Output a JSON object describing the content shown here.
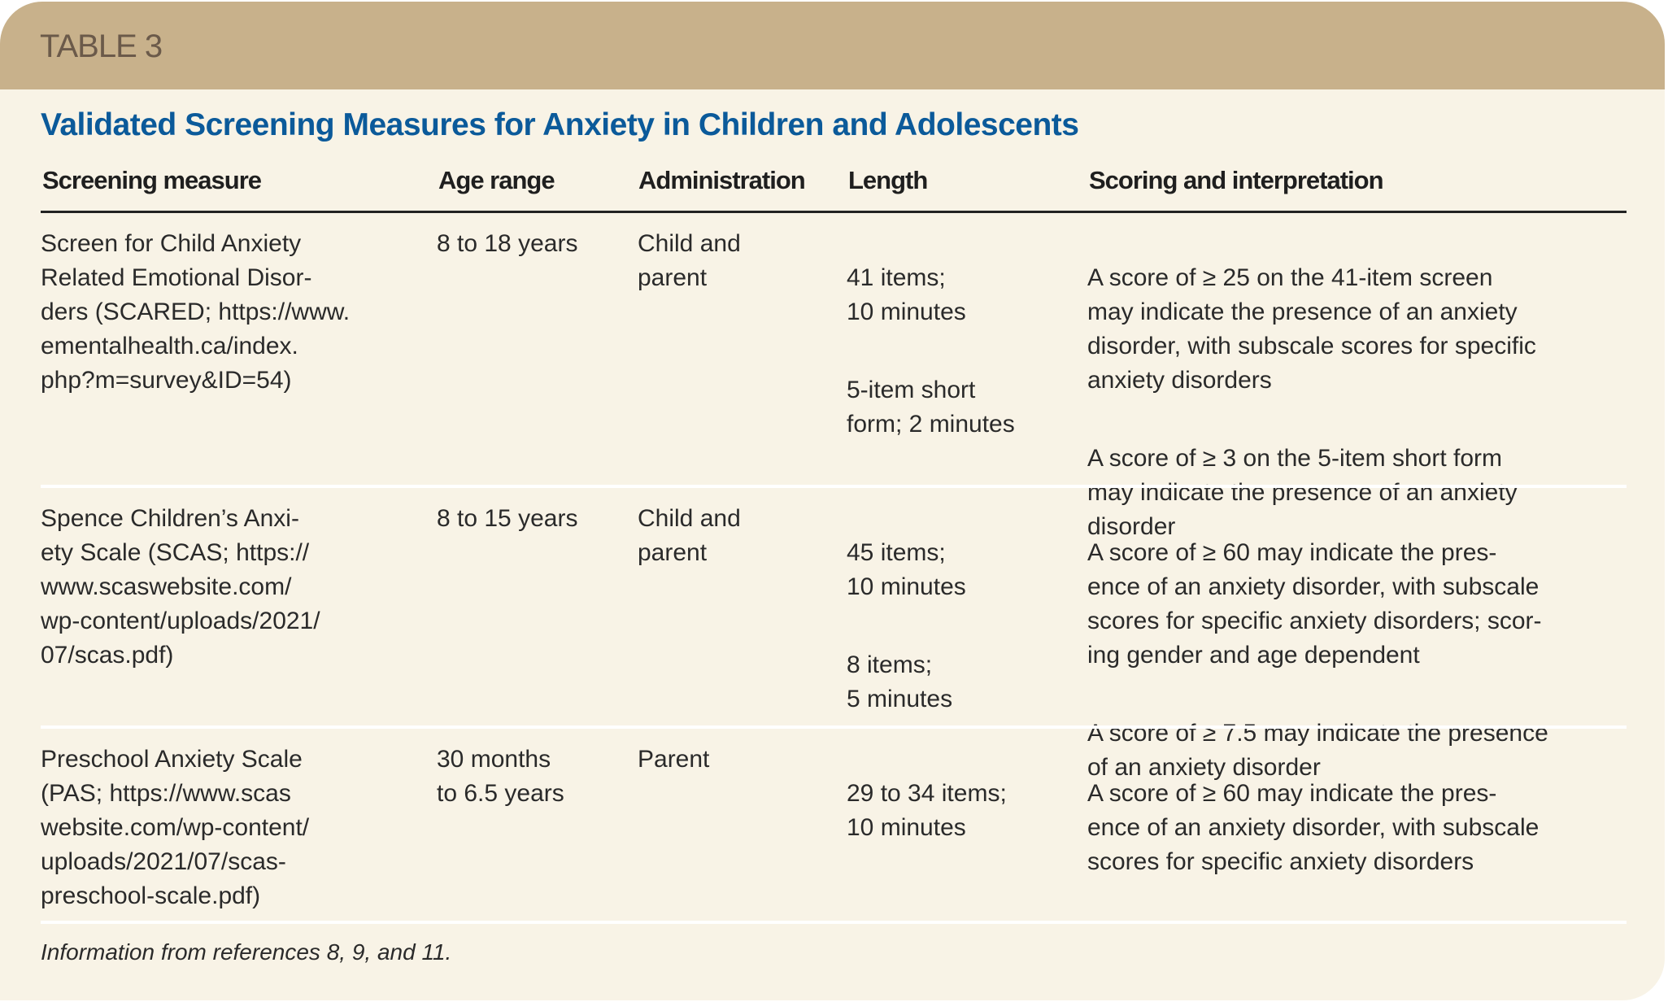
{
  "table_label": "TABLE 3",
  "title": "Validated Screening Measures for Anxiety in Children and Adolescents",
  "columns": [
    "Screening measure",
    "Age range",
    "Administration",
    "Length",
    "Scoring and interpretation"
  ],
  "rows": [
    {
      "measure": "Screen for Child Anxiety\nRelated Emotional Disor-\nders (SCARED; https://www.\nementalhealth.ca/index.\nphp?m=survey&ID=54)",
      "age": "8 to 18 years",
      "administration": "Child and\nparent",
      "length": [
        "41 items;\n10 minutes",
        "5-item short\nform; 2 minutes"
      ],
      "scoring": [
        "A score of ≥ 25 on the 41-item screen\nmay indicate the presence of an anxiety\ndisorder, with subscale scores for specific\nanxiety disorders",
        "A score of ≥ 3 on the 5-item short form\nmay indicate the presence of an anxiety\ndisorder"
      ]
    },
    {
      "measure": "Spence Children’s Anxi-\nety Scale (SCAS; https://\nwww.scaswebsite.com/\nwp-content/uploads/2021/\n07/scas.pdf)",
      "age": "8 to 15 years",
      "administration": "Child and\nparent",
      "length": [
        "45 items;\n10 minutes",
        "8 items;\n5 minutes"
      ],
      "scoring": [
        "A score of ≥ 60 may indicate the pres-\nence of an anxiety disorder, with subscale\nscores for specific anxiety disorders; scor-\ning gender and age dependent",
        "A score of ≥ 7.5 may indicate the presence\nof an anxiety disorder"
      ]
    },
    {
      "measure": "Preschool Anxiety Scale\n(PAS; https://www.scas\nwebsite.com/wp-content/\nuploads/2021/07/scas-\npreschool-scale.pdf)",
      "age": "30 months\nto 6.5 years",
      "administration": "Parent",
      "length": [
        "29 to 34 items;\n10 minutes"
      ],
      "scoring": [
        "A score of ≥ 60 may indicate the pres-\nence of an anxiety disorder, with subscale\nscores for specific anxiety disorders"
      ]
    }
  ],
  "footnote": "Information from references 8, 9, and 11.",
  "colors": {
    "band": "#c8b18b",
    "background": "#f8f3e6",
    "title": "#0b5a9a",
    "label": "#6b5a4a"
  }
}
